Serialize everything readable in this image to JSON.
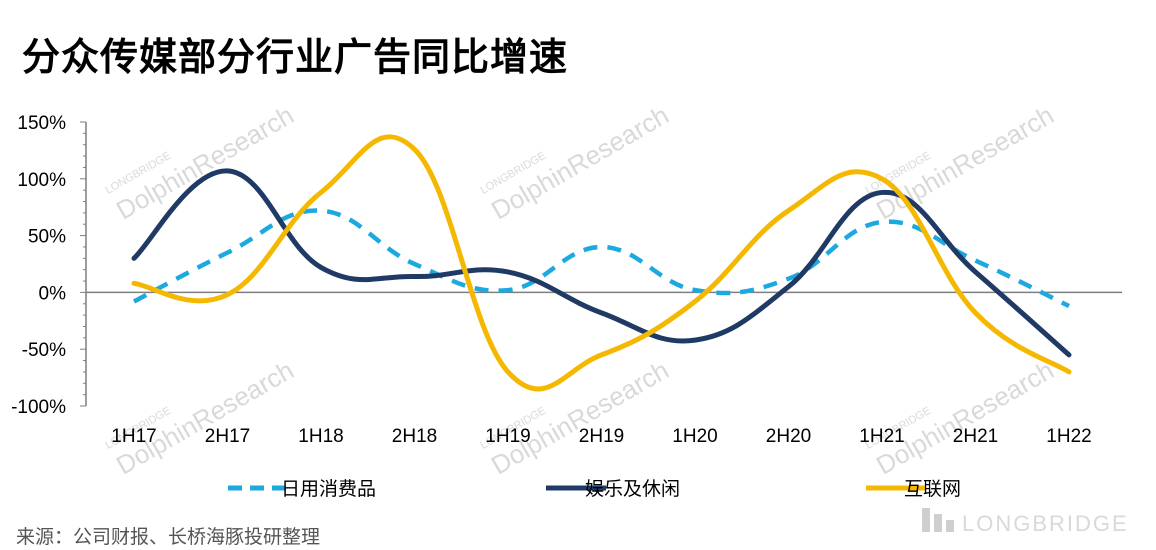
{
  "title": "分众传媒部分行业广告同比增速",
  "source": "来源：公司财报、长桥海豚投研整理",
  "watermark": {
    "brand": "LONGBRIDGE",
    "research": "DolphinResearch"
  },
  "chart_data": {
    "type": "line",
    "title": "分众传媒部分行业广告同比增速",
    "categories": [
      "1H17",
      "2H17",
      "1H18",
      "2H18",
      "1H19",
      "2H19",
      "1H20",
      "2H20",
      "1H21",
      "2H21",
      "1H22"
    ],
    "ylim": [
      -100,
      150
    ],
    "yticks": [
      -100,
      -50,
      0,
      50,
      100,
      150
    ],
    "ytick_labels": [
      "-100%",
      "-50%",
      "0%",
      "50%",
      "100%",
      "150%"
    ],
    "legend_position": "bottom",
    "grid": false,
    "series": [
      {
        "name": "日用消费品",
        "color": "#1CA9E0",
        "style": "dashed",
        "values": [
          -8,
          35,
          72,
          25,
          2,
          40,
          2,
          12,
          62,
          28,
          -12
        ]
      },
      {
        "name": "娱乐及休闲",
        "color": "#1F3A64",
        "style": "solid",
        "values": [
          30,
          107,
          22,
          14,
          18,
          -18,
          -42,
          5,
          88,
          18,
          -55
        ]
      },
      {
        "name": "互联网",
        "color": "#F5B800",
        "style": "solid",
        "values": [
          8,
          -2,
          88,
          126,
          -70,
          -55,
          -8,
          72,
          100,
          -18,
          -70
        ]
      }
    ]
  }
}
